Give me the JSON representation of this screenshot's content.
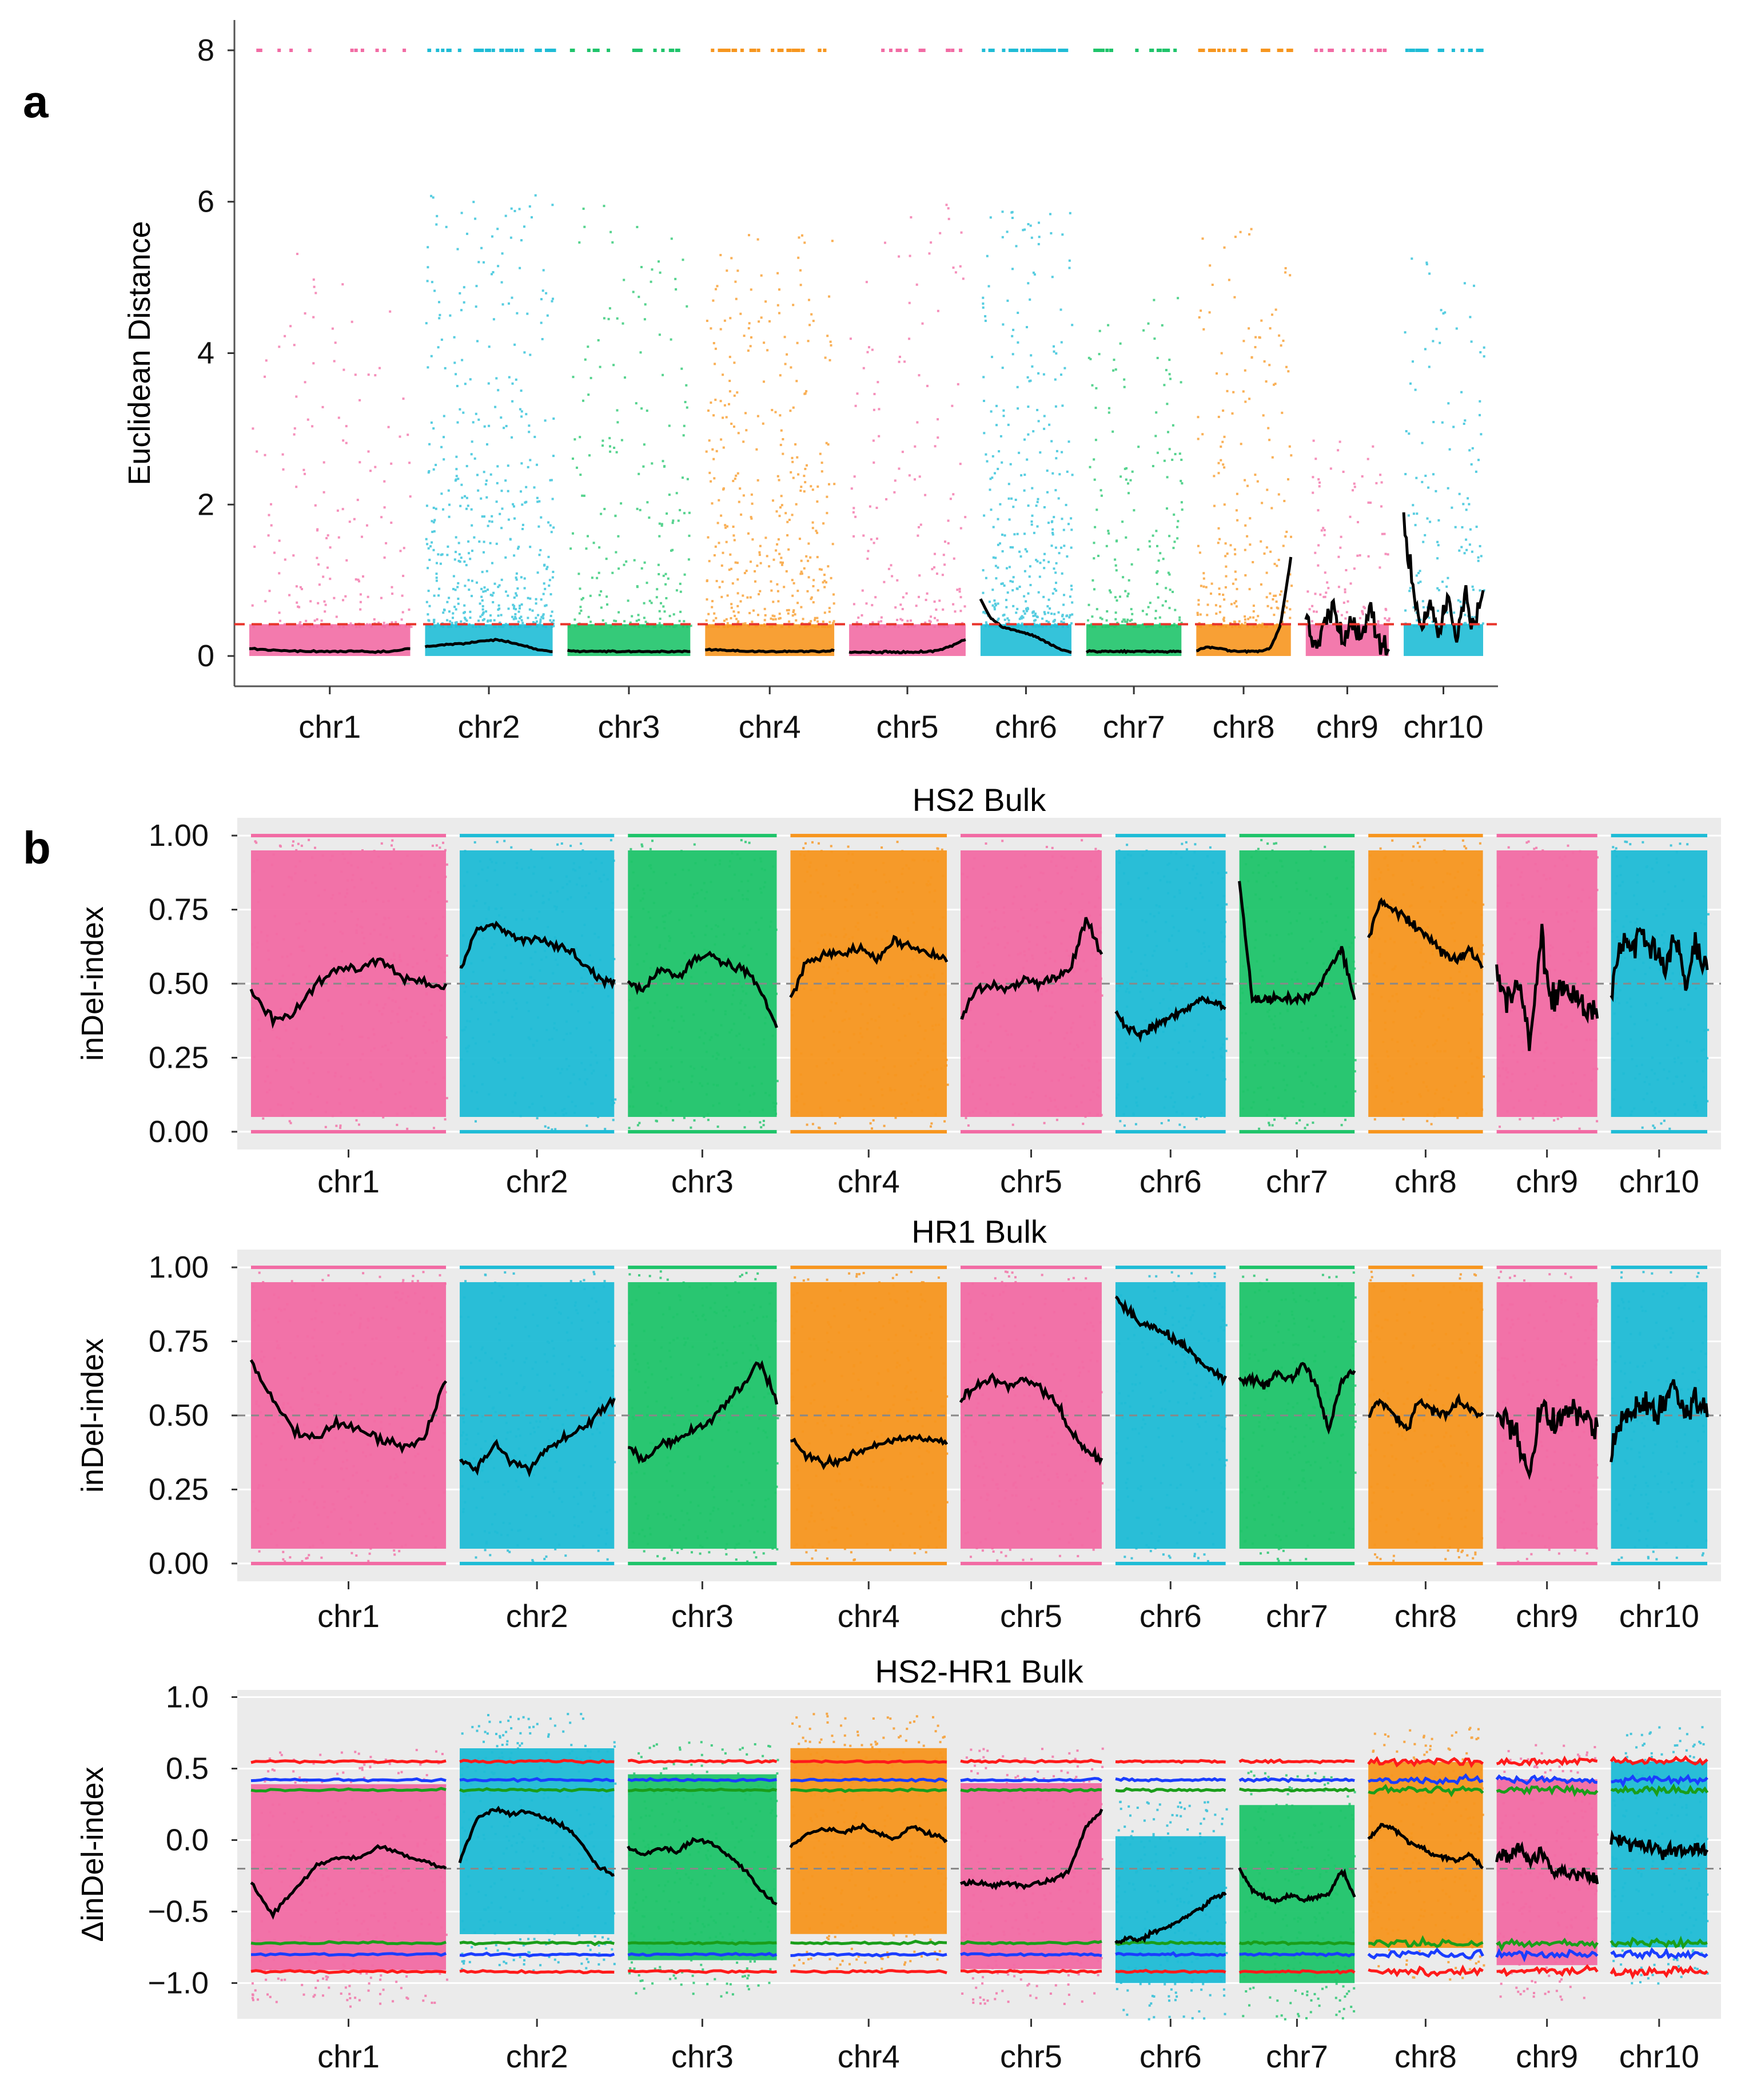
{
  "figure": {
    "panel_a_letter": "a",
    "panel_b_letter": "b"
  },
  "colors": {
    "chr1": "#f26ba4",
    "chr2": "#1fbcd6",
    "chr3": "#1fc46a",
    "chr4": "#f7961f",
    "chr5": "#f26ba4",
    "chr6": "#1fbcd6",
    "chr7": "#1fc46a",
    "chr8": "#f7961f",
    "chr9": "#f26ba4",
    "chr10": "#1fbcd6",
    "threshold_dash_a": "#e8332a",
    "panel_bg": "#ebebeb",
    "grid": "#ffffff",
    "ci_99": "#ff1a1a",
    "ci_95": "#1a3dff",
    "ci_90": "#1a9e1a",
    "fit_line": "#000000"
  },
  "chart_data": [
    {
      "id": "euclidean",
      "type": "scatter",
      "title": "",
      "ylabel": "Euclidean Distance",
      "xlabel": "",
      "ylim": [
        -0.4,
        8.4
      ],
      "yticks": [
        0,
        2,
        4,
        6,
        8
      ],
      "yticklabels": [
        "0",
        "2",
        "4",
        "6",
        "8"
      ],
      "grid": false,
      "background": "white",
      "threshold": 0.42,
      "categories": [
        "chr1",
        "chr2",
        "chr3",
        "chr4",
        "chr5",
        "chr6",
        "chr7",
        "chr8",
        "chr9",
        "chr10"
      ],
      "chrom_lengths_mb": [
        308,
        244,
        235,
        247,
        223,
        174,
        182,
        181,
        159,
        152
      ],
      "chrom_density": [
        0.28,
        0.95,
        0.45,
        0.8,
        0.35,
        0.98,
        0.5,
        0.6,
        0.35,
        0.5
      ],
      "chrom_maxes": [
        5.4,
        6.2,
        6.0,
        5.6,
        6.1,
        5.9,
        4.8,
        5.7,
        3.2,
        5.3
      ],
      "fit_values": [
        [
          0.1,
          0.08,
          0.07,
          0.06,
          0.06,
          0.06,
          0.06,
          0.05,
          0.06,
          0.1
        ],
        [
          0.12,
          0.14,
          0.16,
          0.17,
          0.2,
          0.22,
          0.18,
          0.14,
          0.08,
          0.06
        ],
        [
          0.07,
          0.06,
          0.06,
          0.06,
          0.06,
          0.06,
          0.06,
          0.06,
          0.06,
          0.06
        ],
        [
          0.08,
          0.08,
          0.07,
          0.06,
          0.06,
          0.06,
          0.06,
          0.06,
          0.06,
          0.07
        ],
        [
          0.05,
          0.05,
          0.05,
          0.05,
          0.05,
          0.05,
          0.06,
          0.08,
          0.14,
          0.22
        ],
        [
          0.75,
          0.5,
          0.4,
          0.35,
          0.32,
          0.28,
          0.22,
          0.15,
          0.08,
          0.05
        ],
        [
          0.06,
          0.06,
          0.06,
          0.06,
          0.06,
          0.06,
          0.06,
          0.06,
          0.06,
          0.06
        ],
        [
          0.07,
          0.12,
          0.1,
          0.08,
          0.06,
          0.06,
          0.06,
          0.1,
          0.4,
          1.3
        ],
        [
          0.6,
          0.1,
          0.4,
          0.7,
          0.1,
          0.5,
          0.3,
          0.6,
          0.2,
          0.1
        ],
        [
          1.8,
          0.9,
          0.3,
          0.7,
          0.3,
          0.8,
          0.2,
          0.9,
          0.4,
          0.8
        ]
      ]
    },
    {
      "id": "hs2",
      "type": "scatter",
      "title": "HS2 Bulk",
      "ylabel": "inDel-index",
      "xlabel": "",
      "ylim": [
        -0.06,
        1.06
      ],
      "yticks": [
        0,
        0.25,
        0.5,
        0.75,
        1
      ],
      "yticklabels": [
        "0.00",
        "0.25",
        "0.50",
        "0.75",
        "1.00"
      ],
      "grid": true,
      "background": "grey",
      "refline": 0.5,
      "categories": [
        "chr1",
        "chr2",
        "chr3",
        "chr4",
        "chr5",
        "chr6",
        "chr7",
        "chr8",
        "chr9",
        "chr10"
      ],
      "chrom_lengths_mb": [
        308,
        244,
        235,
        247,
        223,
        174,
        182,
        181,
        159,
        152
      ],
      "fit_values": [
        [
          0.48,
          0.38,
          0.4,
          0.5,
          0.55,
          0.55,
          0.58,
          0.52,
          0.5,
          0.48
        ],
        [
          0.55,
          0.68,
          0.7,
          0.66,
          0.65,
          0.64,
          0.62,
          0.58,
          0.52,
          0.5
        ],
        [
          0.5,
          0.48,
          0.55,
          0.52,
          0.58,
          0.6,
          0.56,
          0.55,
          0.48,
          0.35
        ],
        [
          0.45,
          0.58,
          0.6,
          0.6,
          0.62,
          0.58,
          0.65,
          0.62,
          0.6,
          0.58
        ],
        [
          0.38,
          0.48,
          0.5,
          0.48,
          0.52,
          0.5,
          0.52,
          0.55,
          0.72,
          0.6
        ],
        [
          0.4,
          0.35,
          0.33,
          0.35,
          0.38,
          0.4,
          0.42,
          0.45,
          0.44,
          0.42
        ],
        [
          0.85,
          0.45,
          0.44,
          0.45,
          0.45,
          0.45,
          0.48,
          0.55,
          0.62,
          0.45
        ],
        [
          0.65,
          0.78,
          0.75,
          0.72,
          0.68,
          0.65,
          0.6,
          0.58,
          0.62,
          0.55
        ],
        [
          0.55,
          0.45,
          0.5,
          0.3,
          0.65,
          0.45,
          0.5,
          0.45,
          0.42,
          0.4
        ],
        [
          0.48,
          0.65,
          0.62,
          0.68,
          0.6,
          0.55,
          0.65,
          0.5,
          0.62,
          0.55
        ]
      ]
    },
    {
      "id": "hr1",
      "type": "scatter",
      "title": "HR1 Bulk",
      "ylabel": "inDel-index",
      "xlabel": "",
      "ylim": [
        -0.06,
        1.06
      ],
      "yticks": [
        0,
        0.25,
        0.5,
        0.75,
        1
      ],
      "yticklabels": [
        "0.00",
        "0.25",
        "0.50",
        "0.75",
        "1.00"
      ],
      "grid": true,
      "background": "grey",
      "refline": 0.5,
      "categories": [
        "chr1",
        "chr2",
        "chr3",
        "chr4",
        "chr5",
        "chr6",
        "chr7",
        "chr8",
        "chr9",
        "chr10"
      ],
      "chrom_lengths_mb": [
        308,
        244,
        235,
        247,
        223,
        174,
        182,
        181,
        159,
        152
      ],
      "fit_values": [
        [
          0.68,
          0.55,
          0.45,
          0.42,
          0.48,
          0.45,
          0.42,
          0.4,
          0.42,
          0.62
        ],
        [
          0.35,
          0.32,
          0.4,
          0.35,
          0.32,
          0.38,
          0.42,
          0.45,
          0.5,
          0.55
        ],
        [
          0.4,
          0.35,
          0.4,
          0.42,
          0.45,
          0.48,
          0.55,
          0.6,
          0.68,
          0.55
        ],
        [
          0.42,
          0.36,
          0.34,
          0.35,
          0.38,
          0.4,
          0.42,
          0.42,
          0.42,
          0.4
        ],
        [
          0.55,
          0.6,
          0.62,
          0.6,
          0.62,
          0.6,
          0.55,
          0.45,
          0.38,
          0.35
        ],
        [
          0.9,
          0.85,
          0.82,
          0.8,
          0.78,
          0.75,
          0.72,
          0.68,
          0.65,
          0.62
        ],
        [
          0.62,
          0.62,
          0.6,
          0.65,
          0.62,
          0.68,
          0.6,
          0.45,
          0.62,
          0.65
        ],
        [
          0.5,
          0.55,
          0.5,
          0.45,
          0.55,
          0.52,
          0.5,
          0.55,
          0.52,
          0.5
        ],
        [
          0.5,
          0.48,
          0.42,
          0.3,
          0.55,
          0.45,
          0.5,
          0.52,
          0.48,
          0.45
        ],
        [
          0.38,
          0.5,
          0.52,
          0.55,
          0.5,
          0.55,
          0.6,
          0.5,
          0.55,
          0.52
        ]
      ]
    },
    {
      "id": "delta",
      "type": "scatter",
      "title": "HS2-HR1 Bulk",
      "ylabel": "ΔinDel-index",
      "xlabel": "",
      "ylim": [
        -1.25,
        1.05
      ],
      "yticks": [
        -1,
        -0.5,
        0,
        0.5,
        1
      ],
      "yticklabels": [
        "−1.0",
        "−0.5",
        "0.0",
        "0.5",
        "1.0"
      ],
      "grid": true,
      "background": "grey",
      "refline": -0.2,
      "ci_levels": {
        "p99": 0.55,
        "p95": 0.42,
        "p90": 0.35
      },
      "ci_levels_neg": {
        "p99": -0.92,
        "p95": -0.8,
        "p90": -0.72
      },
      "categories": [
        "chr1",
        "chr2",
        "chr3",
        "chr4",
        "chr5",
        "chr6",
        "chr7",
        "chr8",
        "chr9",
        "chr10"
      ],
      "chrom_lengths_mb": [
        308,
        244,
        235,
        247,
        223,
        174,
        182,
        181,
        159,
        152
      ],
      "fit_values": [
        [
          -0.3,
          -0.52,
          -0.35,
          -0.18,
          -0.12,
          -0.12,
          -0.05,
          -0.1,
          -0.15,
          -0.2
        ],
        [
          -0.15,
          0.15,
          0.22,
          0.18,
          0.2,
          0.15,
          0.1,
          0.0,
          -0.18,
          -0.25
        ],
        [
          -0.05,
          -0.1,
          -0.05,
          -0.08,
          0.0,
          -0.02,
          -0.1,
          -0.2,
          -0.35,
          -0.45
        ],
        [
          -0.05,
          0.05,
          0.08,
          0.05,
          0.1,
          0.05,
          0.0,
          0.1,
          0.05,
          0.0
        ],
        [
          -0.3,
          -0.3,
          -0.32,
          -0.3,
          -0.32,
          -0.3,
          -0.28,
          -0.2,
          0.1,
          0.2
        ],
        [
          -0.72,
          -0.68,
          -0.7,
          -0.65,
          -0.62,
          -0.58,
          -0.52,
          -0.48,
          -0.4,
          -0.38
        ],
        [
          -0.2,
          -0.35,
          -0.4,
          -0.42,
          -0.38,
          -0.42,
          -0.4,
          -0.38,
          -0.2,
          -0.4
        ],
        [
          0.0,
          0.1,
          0.08,
          0.0,
          -0.05,
          -0.1,
          -0.12,
          -0.15,
          -0.1,
          -0.2
        ],
        [
          -0.1,
          -0.15,
          -0.05,
          -0.15,
          -0.1,
          -0.2,
          -0.25,
          -0.22,
          -0.25,
          -0.28
        ],
        [
          0.0,
          0.0,
          -0.02,
          -0.05,
          -0.05,
          -0.1,
          -0.05,
          -0.08,
          -0.05,
          -0.1
        ]
      ]
    }
  ]
}
